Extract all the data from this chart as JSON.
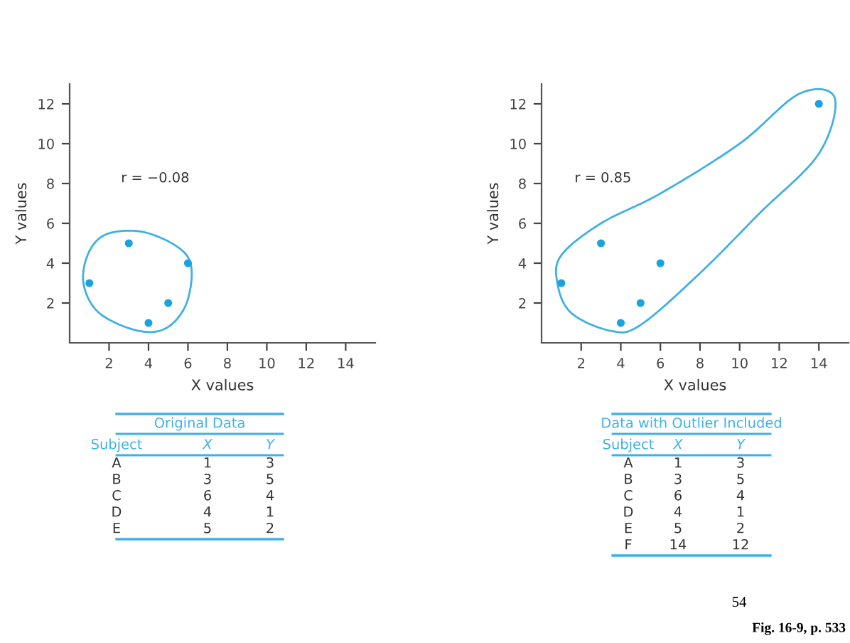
{
  "chart_data": [
    {
      "type": "scatter",
      "xlabel": "X values",
      "ylabel": "Y values",
      "x": [
        1,
        3,
        6,
        4,
        5
      ],
      "series": [
        {
          "color": "#1aa3e0",
          "values": [
            3,
            5,
            4,
            1,
            2
          ]
        }
      ],
      "xlim": [
        0,
        15.5
      ],
      "ylim": [
        0,
        13
      ],
      "xticks": [
        2,
        4,
        6,
        8,
        10,
        12,
        14
      ],
      "yticks": [
        2,
        4,
        6,
        8,
        10,
        12
      ],
      "marker": "circle",
      "grid": false,
      "annotations": [
        "r = −0.08",
        "Original Data",
        "Subject",
        "X",
        "Y",
        "A",
        "1",
        "3",
        "B",
        "3",
        "5",
        "C",
        "6",
        "4",
        "D",
        "4",
        "1",
        "E",
        "5",
        "2"
      ]
    },
    {
      "type": "scatter",
      "xlabel": "X values",
      "ylabel": "Y values",
      "x": [
        1,
        3,
        6,
        4,
        5,
        14
      ],
      "series": [
        {
          "color": "#1aa3e0",
          "values": [
            3,
            5,
            4,
            1,
            2,
            12
          ]
        }
      ],
      "xlim": [
        0,
        15.5
      ],
      "ylim": [
        0,
        13
      ],
      "xticks": [
        2,
        4,
        6,
        8,
        10,
        12,
        14
      ],
      "yticks": [
        2,
        4,
        6,
        8,
        10,
        12
      ],
      "marker": "circle",
      "grid": false,
      "annotations": [
        "r = 0.85",
        "Data with Outlier Included",
        "Subject",
        "X",
        "Y",
        "A",
        "1",
        "3",
        "B",
        "3",
        "5",
        "C",
        "6",
        "4",
        "D",
        "4",
        "1",
        "E",
        "5",
        "2",
        "F",
        "14",
        "12",
        "54",
        "Fig. 16-9, p. 533"
      ]
    }
  ]
}
